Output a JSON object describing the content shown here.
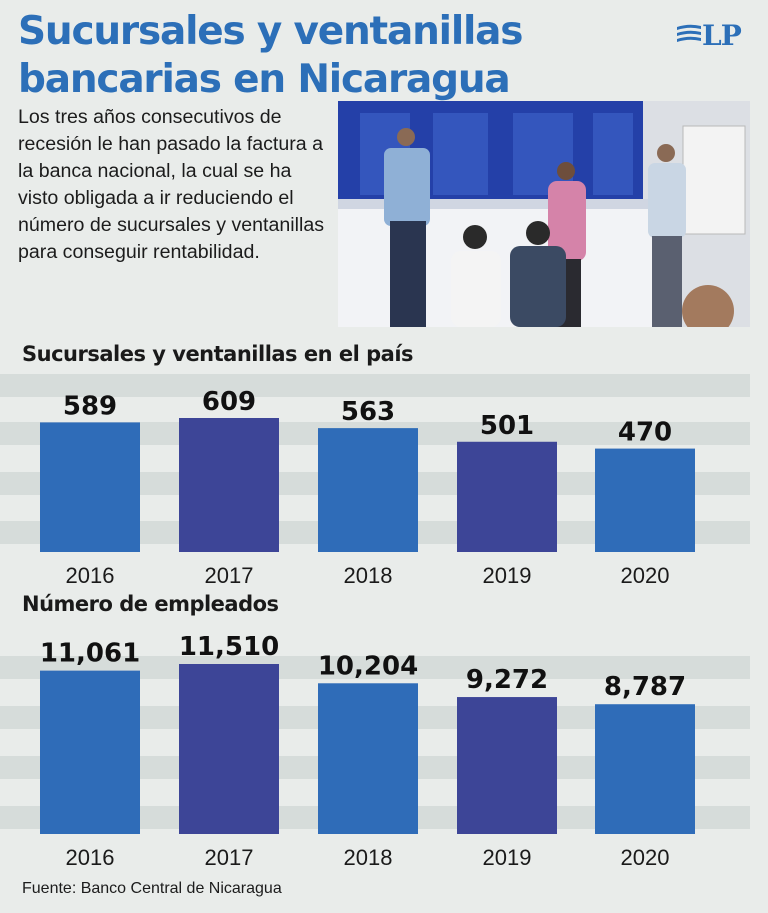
{
  "header": {
    "title_line1": "Sucursales y ventanillas",
    "title_line2": "bancarias en Nicaragua",
    "logo_text": "LP"
  },
  "intro_text": "Los tres años consecutivos de recesión le han pasado la factura a la banca nacional, la cual se ha visto obligada a ir reduciendo el número de sucursales y ventanillas para conseguir rentabilidad.",
  "colors": {
    "accent": "#2c6fb8",
    "bar_light": "#2f6cb8",
    "bar_dark": "#3d4597",
    "stripe": "#d6dcda",
    "background": "#e9ecea"
  },
  "chart_data": [
    {
      "type": "bar",
      "title": "Sucursales y ventanillas en el país",
      "categories": [
        "2016",
        "2017",
        "2018",
        "2019",
        "2020"
      ],
      "values": [
        589,
        609,
        563,
        501,
        470
      ],
      "labels": [
        "589",
        "609",
        "563",
        "501",
        "470"
      ],
      "ylim": [
        0,
        609
      ],
      "grid": "horizontal bands"
    },
    {
      "type": "bar",
      "title": "Número de empleados",
      "categories": [
        "2016",
        "2017",
        "2018",
        "2019",
        "2020"
      ],
      "values": [
        11061,
        11510,
        10204,
        9272,
        8787
      ],
      "labels": [
        "11,061",
        "11,510",
        "10,204",
        "9,272",
        "8,787"
      ],
      "ylim": [
        0,
        11510
      ],
      "grid": "horizontal bands"
    }
  ],
  "source": "Fuente: Banco Central de Nicaragua"
}
